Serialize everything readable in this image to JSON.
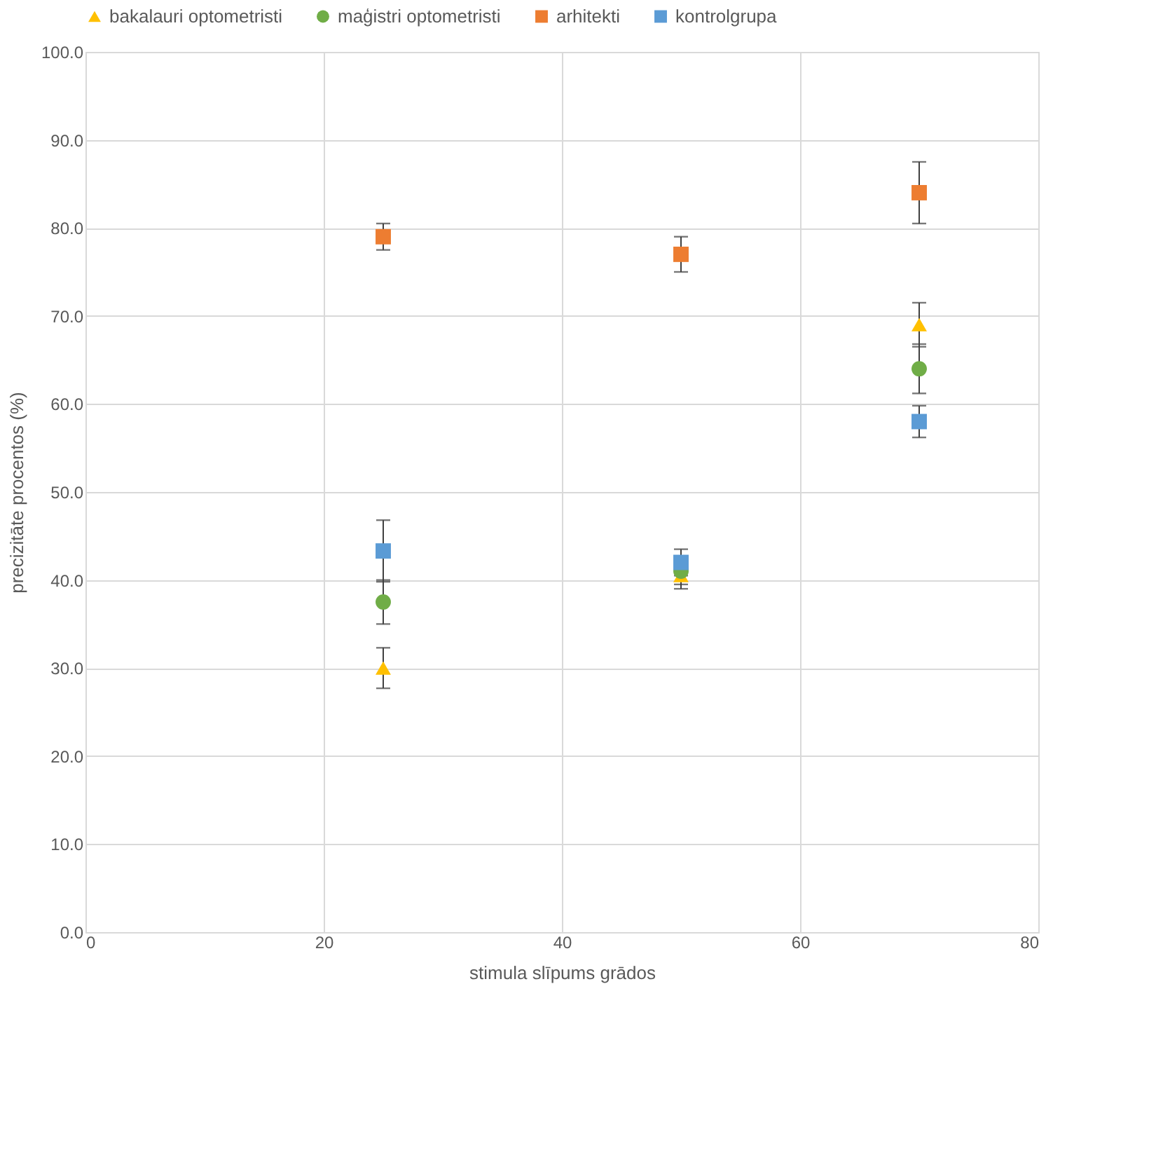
{
  "chart_data": {
    "type": "scatter",
    "xlabel": "stimula slīpums grādos",
    "ylabel": "precizitāte procentos (%)",
    "xlim": [
      0,
      80
    ],
    "xticks": [
      0,
      20,
      40,
      60,
      80
    ],
    "ylim": [
      0,
      100
    ],
    "yticks": [
      {
        "value": 0,
        "label": "0.0"
      },
      {
        "value": 10,
        "label": "10.0"
      },
      {
        "value": 20,
        "label": "20.0"
      },
      {
        "value": 30,
        "label": "30.0"
      },
      {
        "value": 40,
        "label": "40.0"
      },
      {
        "value": 50,
        "label": "50.0"
      },
      {
        "value": 60,
        "label": "60.0"
      },
      {
        "value": 70,
        "label": "70.0"
      },
      {
        "value": 80,
        "label": "80.0"
      },
      {
        "value": 90,
        "label": "90.0"
      },
      {
        "value": 100,
        "label": "100.0"
      }
    ],
    "grid": true,
    "legend": "top",
    "x": [
      25,
      50,
      70
    ],
    "series": [
      {
        "name": "bakalauri optometristi",
        "color": "#ffc000",
        "marker": "triangle",
        "values": [
          30,
          40.5,
          69
        ],
        "errors": [
          2.3,
          1.5,
          2.5
        ]
      },
      {
        "name": "maģistri optometristi",
        "color": "#70ad47",
        "marker": "circle",
        "values": [
          37.5,
          41,
          64
        ],
        "errors": [
          2.5,
          1.5,
          2.8
        ]
      },
      {
        "name": "arhitekti",
        "color": "#ed7d31",
        "marker": "square",
        "values": [
          79,
          77,
          84
        ],
        "errors": [
          1.5,
          2,
          3.5
        ]
      },
      {
        "name": "kontrolgrupa",
        "color": "#5b9bd5",
        "marker": "square",
        "values": [
          43.3,
          42,
          58
        ],
        "errors": [
          3.5,
          1.5,
          1.8
        ]
      }
    ]
  }
}
